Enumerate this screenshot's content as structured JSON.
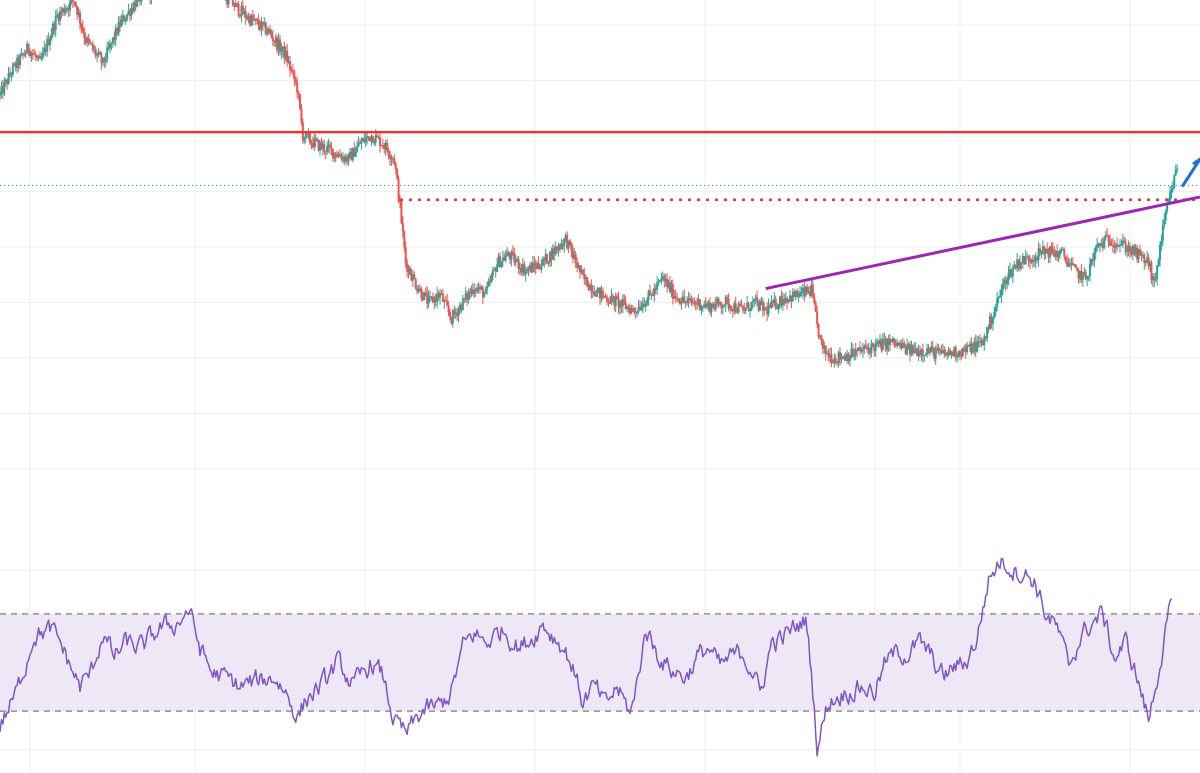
{
  "colors": {
    "background": "#ffffff",
    "grid": "#eeeff2",
    "up": "#26a69a",
    "down": "#ef5350",
    "resistance": "#e53935",
    "trendline": "#9c27b0",
    "arrow": "#1e6fe0",
    "current_price": "#2196f3",
    "rsi_line": "#7e57c2",
    "rsi_band": "#ede7f6",
    "rsi_level": "#787b86"
  },
  "chart_data": [
    {
      "type": "candlestick",
      "title": "",
      "xlabel": "",
      "ylabel": "",
      "x_range": [
        0,
        420
      ],
      "ylim": [
        0,
        100
      ],
      "grid": true,
      "anchors": [
        [
          0,
          76
        ],
        [
          4,
          82
        ],
        [
          10,
          88
        ],
        [
          14,
          84
        ],
        [
          20,
          96
        ],
        [
          26,
          100
        ],
        [
          30,
          90
        ],
        [
          36,
          84
        ],
        [
          42,
          94
        ],
        [
          48,
          100
        ],
        [
          56,
          104
        ],
        [
          62,
          104
        ],
        [
          72,
          106
        ],
        [
          80,
          100
        ],
        [
          86,
          96
        ],
        [
          94,
          92
        ],
        [
          100,
          86
        ],
        [
          104,
          78
        ],
        [
          106,
          66
        ],
        [
          110,
          64
        ],
        [
          116,
          62
        ],
        [
          122,
          60
        ],
        [
          126,
          64
        ],
        [
          130,
          66
        ],
        [
          134,
          64
        ],
        [
          138,
          60
        ],
        [
          140,
          48
        ],
        [
          142,
          34
        ],
        [
          146,
          28
        ],
        [
          150,
          24
        ],
        [
          154,
          26
        ],
        [
          158,
          20
        ],
        [
          162,
          24
        ],
        [
          166,
          28
        ],
        [
          170,
          26
        ],
        [
          174,
          34
        ],
        [
          178,
          36
        ],
        [
          184,
          32
        ],
        [
          190,
          34
        ],
        [
          198,
          40
        ],
        [
          204,
          30
        ],
        [
          210,
          26
        ],
        [
          216,
          24
        ],
        [
          222,
          22
        ],
        [
          228,
          26
        ],
        [
          232,
          30
        ],
        [
          236,
          26
        ],
        [
          240,
          24
        ],
        [
          244,
          24
        ],
        [
          248,
          23
        ],
        [
          254,
          24
        ],
        [
          260,
          22
        ],
        [
          264,
          24
        ],
        [
          268,
          22
        ],
        [
          274,
          25
        ],
        [
          280,
          26
        ],
        [
          284,
          27
        ],
        [
          286,
          18
        ],
        [
          288,
          12
        ],
        [
          292,
          10
        ],
        [
          298,
          11
        ],
        [
          306,
          13
        ],
        [
          312,
          14
        ],
        [
          318,
          12
        ],
        [
          324,
          12
        ],
        [
          330,
          11
        ],
        [
          338,
          12
        ],
        [
          344,
          14
        ],
        [
          348,
          22
        ],
        [
          352,
          30
        ],
        [
          356,
          34
        ],
        [
          360,
          35
        ],
        [
          366,
          37
        ],
        [
          372,
          36
        ],
        [
          376,
          32
        ],
        [
          380,
          30
        ],
        [
          384,
          38
        ],
        [
          388,
          40
        ],
        [
          394,
          38
        ],
        [
          398,
          36
        ],
        [
          402,
          34
        ],
        [
          404,
          28
        ],
        [
          406,
          38
        ],
        [
          408,
          46
        ],
        [
          410,
          52
        ],
        [
          412,
          58
        ]
      ],
      "resistance_level": 66.8,
      "support_level": 49.8,
      "current_price": 53.4,
      "trendline": {
        "from": [
          268,
          27.5
        ],
        "to": [
          420,
          50.5
        ]
      },
      "arrow": [
        [
          414,
          53.4
        ],
        [
          420,
          60
        ]
      ]
    },
    {
      "type": "line",
      "title": "",
      "xlabel": "",
      "ylabel": "",
      "x_range": [
        0,
        420
      ],
      "ylim": [
        0,
        100
      ],
      "overbought": 70,
      "oversold": 30,
      "grid": true,
      "anchors": [
        [
          0,
          24
        ],
        [
          6,
          38
        ],
        [
          12,
          62
        ],
        [
          18,
          63
        ],
        [
          22,
          56
        ],
        [
          24,
          50
        ],
        [
          28,
          40
        ],
        [
          32,
          46
        ],
        [
          36,
          62
        ],
        [
          40,
          52
        ],
        [
          44,
          58
        ],
        [
          50,
          56
        ],
        [
          56,
          64
        ],
        [
          62,
          66
        ],
        [
          66,
          72
        ],
        [
          70,
          56
        ],
        [
          74,
          46
        ],
        [
          78,
          44
        ],
        [
          84,
          40
        ],
        [
          90,
          42
        ],
        [
          96,
          44
        ],
        [
          100,
          38
        ],
        [
          104,
          28
        ],
        [
          108,
          36
        ],
        [
          114,
          42
        ],
        [
          118,
          50
        ],
        [
          124,
          40
        ],
        [
          130,
          50
        ],
        [
          134,
          44
        ],
        [
          138,
          26
        ],
        [
          142,
          20
        ],
        [
          148,
          30
        ],
        [
          154,
          32
        ],
        [
          158,
          38
        ],
        [
          162,
          56
        ],
        [
          166,
          62
        ],
        [
          170,
          58
        ],
        [
          176,
          64
        ],
        [
          182,
          56
        ],
        [
          186,
          60
        ],
        [
          190,
          66
        ],
        [
          196,
          58
        ],
        [
          200,
          50
        ],
        [
          204,
          34
        ],
        [
          208,
          40
        ],
        [
          212,
          32
        ],
        [
          216,
          40
        ],
        [
          220,
          30
        ],
        [
          222,
          34
        ],
        [
          226,
          64
        ],
        [
          230,
          54
        ],
        [
          234,
          48
        ],
        [
          240,
          44
        ],
        [
          244,
          52
        ],
        [
          248,
          56
        ],
        [
          252,
          48
        ],
        [
          256,
          52
        ],
        [
          260,
          54
        ],
        [
          264,
          46
        ],
        [
          266,
          36
        ],
        [
          270,
          58
        ],
        [
          274,
          60
        ],
        [
          278,
          64
        ],
        [
          282,
          68
        ],
        [
          284,
          46
        ],
        [
          286,
          16
        ],
        [
          290,
          34
        ],
        [
          296,
          38
        ],
        [
          302,
          40
        ],
        [
          306,
          38
        ],
        [
          310,
          50
        ],
        [
          314,
          54
        ],
        [
          318,
          54
        ],
        [
          322,
          58
        ],
        [
          326,
          52
        ],
        [
          330,
          44
        ],
        [
          334,
          48
        ],
        [
          338,
          50
        ],
        [
          342,
          60
        ],
        [
          346,
          84
        ],
        [
          350,
          92
        ],
        [
          356,
          88
        ],
        [
          362,
          84
        ],
        [
          366,
          70
        ],
        [
          370,
          64
        ],
        [
          374,
          48
        ],
        [
          378,
          60
        ],
        [
          382,
          66
        ],
        [
          386,
          70
        ],
        [
          390,
          52
        ],
        [
          394,
          58
        ],
        [
          398,
          44
        ],
        [
          402,
          26
        ],
        [
          406,
          50
        ],
        [
          408,
          62
        ],
        [
          410,
          74
        ]
      ]
    }
  ]
}
